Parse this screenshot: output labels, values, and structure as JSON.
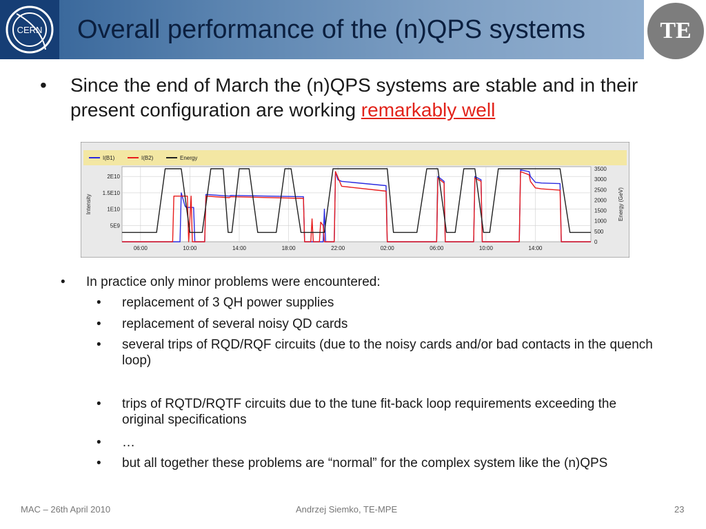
{
  "slide": {
    "title": "Overall performance of the (n)QPS systems",
    "logo_text": "CERN",
    "badge_text": "TE",
    "main_bullet_part1": "Since the end of March the (n)QPS systems  are stable and in their present configuration are working ",
    "main_bullet_highlight": "remarkably well",
    "bullet_char": "•",
    "sub_bullets": [
      {
        "level": 1,
        "text": "In practice only minor problems were encountered:"
      },
      {
        "level": 2,
        "text": "replacement of 3 QH power supplies"
      },
      {
        "level": 2,
        "text": "replacement of several noisy QD cards"
      },
      {
        "level": 2,
        "text": "several trips of RQD/RQF circuits (due to the noisy cards and/or bad contacts in the quench loop)"
      },
      {
        "level": 2,
        "text": "trips of RQTD/RQTF circuits due to the tune fit-back loop requirements exceeding the original specifications"
      },
      {
        "level": 2,
        "text": "…"
      },
      {
        "level": 2,
        "text": "but all together these problems are “normal” for the complex system like the (n)QPS"
      }
    ],
    "footer_left": "MAC – 26th April 2010",
    "footer_center": "Andrzej Siemko, TE-MPE",
    "footer_right": "23"
  },
  "chart_data": {
    "type": "line",
    "legend": [
      {
        "name": "I(B1)",
        "color": "#2a2ae0"
      },
      {
        "name": "I(B2)",
        "color": "#e81c1c"
      },
      {
        "name": "Energy",
        "color": "#202020"
      }
    ],
    "legend_position": "top-left",
    "ylabel": "Intensity",
    "y2label": "Energy (GeV)",
    "y_ticks": [
      "2E10",
      "1.5E10",
      "1E10",
      "5E9"
    ],
    "y_tick_values": [
      20000000000.0,
      15000000000.0,
      10000000000.0,
      5000000000.0
    ],
    "ylim": [
      0,
      23000000000.0
    ],
    "y2_ticks": [
      "3500",
      "3000",
      "2500",
      "2000",
      "1500",
      "1000",
      "500",
      "0"
    ],
    "y2_tick_values": [
      3500,
      3000,
      2500,
      2000,
      1500,
      1000,
      500,
      0
    ],
    "y2lim": [
      0,
      3600
    ],
    "x_ticks": [
      "06:00",
      "10:00",
      "14:00",
      "18:00",
      "22:00",
      "02:00",
      "06:00",
      "10:00",
      "14:00"
    ],
    "x_tick_hours": [
      6,
      10,
      14,
      18,
      22,
      26,
      30,
      34,
      38
    ],
    "xlim_hours": [
      4.5,
      42.5
    ],
    "grid": true,
    "series": [
      {
        "name": "I(B1)",
        "axis": "left",
        "x": [
          4.5,
          9.2,
          9.3,
          9.6,
          9.7,
          10.3,
          10.4,
          11.2,
          11.3,
          13.2,
          13.3,
          19.2,
          19.3,
          20.8,
          20.9,
          21.0,
          21.4,
          21.7,
          21.8,
          22.0,
          22.3,
          25.9,
          26.0,
          30.0,
          30.1,
          30.6,
          30.7,
          33.0,
          33.1,
          33.6,
          33.7,
          36.7,
          36.8,
          37.5,
          37.6,
          38.0,
          38.5,
          40.0,
          40.1,
          42.5
        ],
        "y": [
          0,
          0,
          15000000000.0,
          11000000000.0,
          10500000000.0,
          10500000000.0,
          0,
          0,
          14500000000.0,
          14000000000.0,
          14200000000.0,
          13800000000.0,
          0,
          0,
          10000000000.0,
          0,
          0,
          0,
          21500000000.0,
          19000000000.0,
          18500000000.0,
          17200000000.0,
          0,
          0,
          20000000000.0,
          18500000000.0,
          0,
          0,
          20000000000.0,
          19000000000.0,
          0,
          0,
          22000000000.0,
          21500000000.0,
          20000000000.0,
          18200000000.0,
          18000000000.0,
          17800000000.0,
          0,
          0
        ]
      },
      {
        "name": "I(B2)",
        "axis": "left",
        "x": [
          4.5,
          8.6,
          8.7,
          9.8,
          9.9,
          10.1,
          10.2,
          11.2,
          11.3,
          13.2,
          13.3,
          19.2,
          19.3,
          19.8,
          19.9,
          20.0,
          20.5,
          20.6,
          20.8,
          20.9,
          21.0,
          21.7,
          21.8,
          22.3,
          25.9,
          26.0,
          30.0,
          30.1,
          30.6,
          30.7,
          33.0,
          33.1,
          33.6,
          33.7,
          36.7,
          36.8,
          37.5,
          37.6,
          38.0,
          38.5,
          40.0,
          40.1,
          42.5
        ],
        "y": [
          0,
          0,
          14000000000.0,
          14000000000.0,
          0,
          14000000000.0,
          0,
          0,
          14000000000.0,
          13500000000.0,
          13800000000.0,
          13300000000.0,
          0,
          0,
          7000000000.0,
          0,
          0,
          6000000000.0,
          5000000000.0,
          0,
          0,
          0,
          21500000000.0,
          17000000000.0,
          15500000000.0,
          0,
          0,
          19500000000.0,
          18000000000.0,
          0,
          0,
          19500000000.0,
          18500000000.0,
          0,
          0,
          21500000000.0,
          20500000000.0,
          18500000000.0,
          16500000000.0,
          16200000000.0,
          15800000000.0,
          0,
          0
        ]
      },
      {
        "name": "Energy",
        "axis": "right",
        "x": [
          4.5,
          7.3,
          8.0,
          9.3,
          10.0,
          11.0,
          11.7,
          12.7,
          13.1,
          13.4,
          14.0,
          14.8,
          15.5,
          17.0,
          17.7,
          18.2,
          19.0,
          20.9,
          21.6,
          26.0,
          26.5,
          28.4,
          29.2,
          30.1,
          30.8,
          31.5,
          32.2,
          33.1,
          33.8,
          34.3,
          35.0,
          36.8,
          37.5,
          40.0,
          40.8,
          42.5
        ],
        "y": [
          450,
          450,
          3500,
          3500,
          450,
          450,
          3500,
          3500,
          450,
          450,
          3500,
          3500,
          450,
          450,
          3500,
          3500,
          450,
          450,
          3500,
          3500,
          450,
          450,
          3500,
          3500,
          450,
          450,
          3500,
          3500,
          450,
          450,
          3500,
          3500,
          3500,
          3500,
          450,
          450
        ]
      }
    ]
  }
}
